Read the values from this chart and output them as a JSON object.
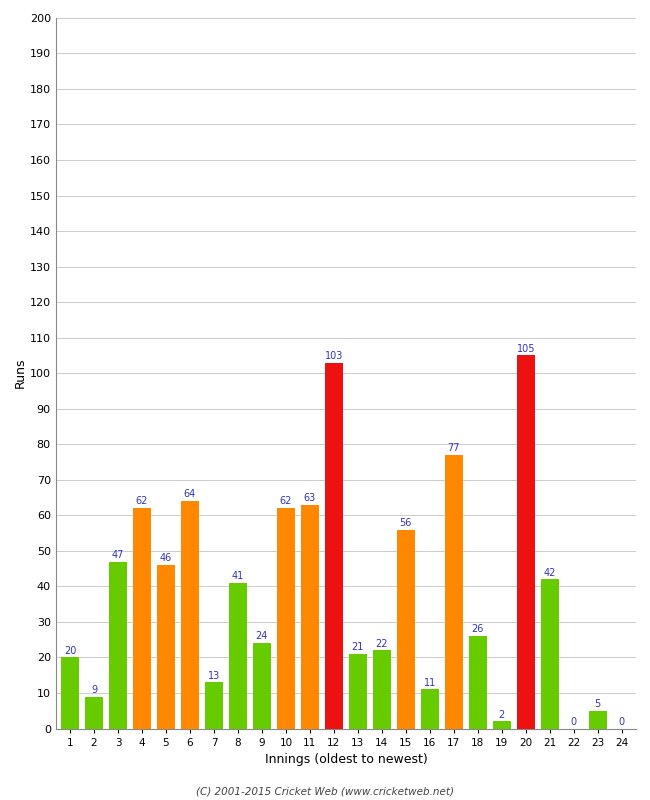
{
  "xlabel": "Innings (oldest to newest)",
  "ylabel": "Runs",
  "ylim": [
    0,
    200
  ],
  "yticks": [
    0,
    10,
    20,
    30,
    40,
    50,
    60,
    70,
    80,
    90,
    100,
    110,
    120,
    130,
    140,
    150,
    160,
    170,
    180,
    190,
    200
  ],
  "innings": [
    1,
    2,
    3,
    4,
    5,
    6,
    7,
    8,
    9,
    10,
    11,
    12,
    13,
    14,
    15,
    16,
    17,
    18,
    19,
    20,
    21,
    22,
    23,
    24
  ],
  "values": [
    20,
    9,
    47,
    62,
    46,
    64,
    13,
    41,
    24,
    62,
    63,
    103,
    21,
    22,
    56,
    11,
    77,
    26,
    2,
    105,
    42,
    0,
    5,
    0
  ],
  "colors": [
    "#66cc00",
    "#66cc00",
    "#66cc00",
    "#ff8800",
    "#ff8800",
    "#ff8800",
    "#66cc00",
    "#66cc00",
    "#66cc00",
    "#ff8800",
    "#ff8800",
    "#ee1111",
    "#66cc00",
    "#66cc00",
    "#ff8800",
    "#66cc00",
    "#ff8800",
    "#66cc00",
    "#66cc00",
    "#ee1111",
    "#66cc00",
    "#66cc00",
    "#66cc00",
    "#66cc00"
  ],
  "label_color": "#3333bb",
  "background_color": "#ffffff",
  "footer": "(C) 2001-2015 Cricket Web (www.cricketweb.net)",
  "footer_color": "#444444",
  "grid_color": "#cccccc",
  "bar_width": 0.75
}
